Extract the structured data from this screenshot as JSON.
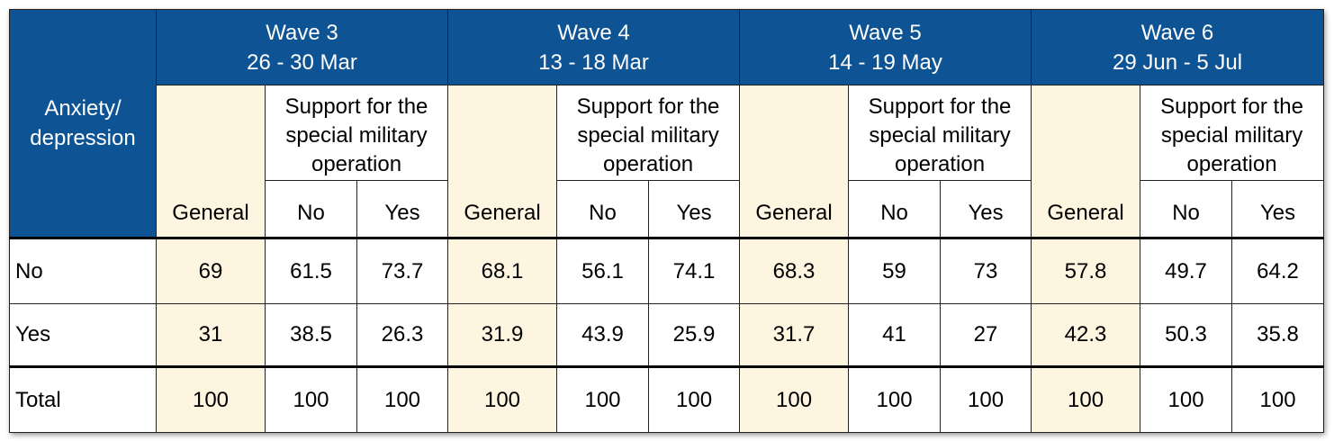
{
  "corner_label_lines": [
    "Anxiety/",
    "depression"
  ],
  "waves": [
    {
      "title": "Wave 3",
      "dates": "26 - 30 Mar"
    },
    {
      "title": "Wave 4",
      "dates": "13 - 18 Mar"
    },
    {
      "title": "Wave 5",
      "dates": "14 - 19 May"
    },
    {
      "title": "Wave 6",
      "dates": "29 Jun - 5 Jul"
    }
  ],
  "support_label_lines": [
    "Support for the",
    "special military",
    "operation"
  ],
  "col_general": "General",
  "col_no": "No",
  "col_yes": "Yes",
  "rows": [
    {
      "label": "No",
      "values": [
        "69",
        "61.5",
        "73.7",
        "68.1",
        "56.1",
        "74.1",
        "68.3",
        "59",
        "73",
        "57.8",
        "49.7",
        "64.2"
      ]
    },
    {
      "label": "Yes",
      "values": [
        "31",
        "38.5",
        "26.3",
        "31.9",
        "43.9",
        "25.9",
        "31.7",
        "41",
        "27",
        "42.3",
        "50.3",
        "35.8"
      ]
    },
    {
      "label": "Total",
      "values": [
        "100",
        "100",
        "100",
        "100",
        "100",
        "100",
        "100",
        "100",
        "100",
        "100",
        "100",
        "100"
      ]
    }
  ],
  "colors": {
    "header_blue": "#0e5394",
    "general_fill": "#fdf5df"
  }
}
